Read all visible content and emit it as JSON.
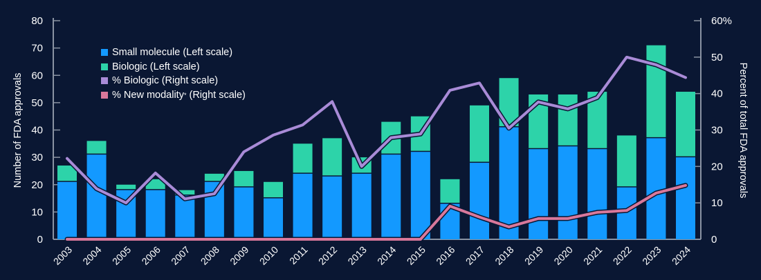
{
  "chart_data": {
    "type": "bar+line",
    "categories": [
      "2003",
      "2004",
      "2005",
      "2006",
      "2007",
      "2008",
      "2009",
      "2010",
      "2011",
      "2012",
      "2013",
      "2014",
      "2015",
      "2016",
      "2017",
      "2018",
      "2019",
      "2020",
      "2021",
      "2022",
      "2023",
      "2024"
    ],
    "ylabel": "Number of FDA approvals",
    "ylabel_right": "Percent of total FDA approvals",
    "ylim": [
      0,
      80
    ],
    "yticks": [
      "0",
      "10",
      "20",
      "30",
      "40",
      "50",
      "60",
      "70",
      "80"
    ],
    "ylim_right": [
      0,
      60
    ],
    "yticks_right": [
      "0",
      "10",
      "20",
      "30",
      "40",
      "50",
      "60%"
    ],
    "legend_position": "top-left",
    "series": [
      {
        "name": "Small molecule (Left scale)",
        "type": "bar",
        "axis": "left",
        "color": "#1399ff",
        "values": [
          21,
          31,
          18,
          18,
          16,
          21,
          19,
          15,
          24,
          23,
          24,
          31,
          32,
          13,
          28,
          41,
          33,
          34,
          33,
          19,
          37,
          30
        ]
      },
      {
        "name": "Biologic (Left scale)",
        "type": "bar",
        "axis": "left",
        "color": "#2dd3a9",
        "values": [
          6,
          5,
          2,
          4,
          2,
          3,
          6,
          6,
          11,
          14,
          6,
          12,
          13,
          9,
          21,
          18,
          20,
          19,
          21,
          19,
          34,
          24
        ]
      },
      {
        "name": "% Biologic (Right scale)",
        "type": "line",
        "axis": "right",
        "color": "#a98bd7",
        "values": [
          22.2,
          13.9,
          10,
          18.2,
          11.1,
          12.5,
          24,
          28.6,
          31.4,
          37.8,
          20,
          27.9,
          28.9,
          40.9,
          42.9,
          30.5,
          37.7,
          35.8,
          38.9,
          50,
          47.9,
          44.4
        ]
      },
      {
        "name": "% New modality",
        "name_sup": "*",
        "name_suffix": " (Right scale)",
        "type": "line",
        "axis": "right",
        "color": "#d9789b",
        "values": [
          0,
          0,
          0,
          0,
          0,
          0,
          0,
          0,
          0,
          0,
          0,
          0,
          0,
          9.1,
          6.1,
          3.4,
          5.7,
          5.7,
          7.4,
          7.9,
          12.7,
          14.8
        ]
      }
    ]
  }
}
